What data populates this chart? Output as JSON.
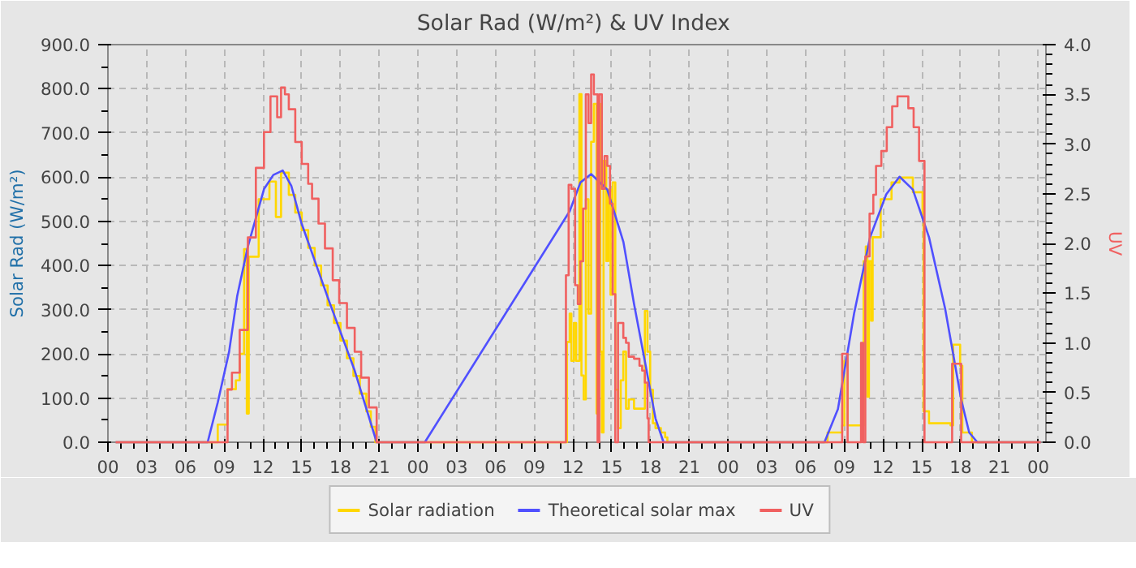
{
  "chart_data": {
    "type": "step",
    "title": "Solar Rad (W/m²) &  UV Index",
    "ylabel": "Solar Rad (W/m²)",
    "y2label": "UV",
    "xlim": [
      0,
      72.6
    ],
    "xticks": [
      {
        "value": 0,
        "label": "00"
      },
      {
        "value": 3,
        "label": "03"
      },
      {
        "value": 6,
        "label": "06"
      },
      {
        "value": 9,
        "label": "09"
      },
      {
        "value": 12,
        "label": "12"
      },
      {
        "value": 15,
        "label": "15"
      },
      {
        "value": 18,
        "label": "18"
      },
      {
        "value": 21,
        "label": "21"
      },
      {
        "value": 24,
        "label": "00"
      },
      {
        "value": 27,
        "label": "03"
      },
      {
        "value": 30,
        "label": "06"
      },
      {
        "value": 33,
        "label": "09"
      },
      {
        "value": 36,
        "label": "12"
      },
      {
        "value": 39,
        "label": "15"
      },
      {
        "value": 42,
        "label": "18"
      },
      {
        "value": 45,
        "label": "21"
      },
      {
        "value": 48,
        "label": "00"
      },
      {
        "value": 51,
        "label": "03"
      },
      {
        "value": 54,
        "label": "06"
      },
      {
        "value": 57,
        "label": "09"
      },
      {
        "value": 60,
        "label": "12"
      },
      {
        "value": 63,
        "label": "15"
      },
      {
        "value": 66,
        "label": "18"
      },
      {
        "value": 69,
        "label": "21"
      },
      {
        "value": 72,
        "label": "00"
      }
    ],
    "ylim": [
      0,
      900
    ],
    "yticks": [
      {
        "value": 0,
        "label": "0.0"
      },
      {
        "value": 100,
        "label": "100.0"
      },
      {
        "value": 200,
        "label": "200.0"
      },
      {
        "value": 300,
        "label": "300.0"
      },
      {
        "value": 400,
        "label": "400.0"
      },
      {
        "value": 500,
        "label": "500.0"
      },
      {
        "value": 600,
        "label": "600.0"
      },
      {
        "value": 700,
        "label": "700.0"
      },
      {
        "value": 800,
        "label": "800.0"
      },
      {
        "value": 900,
        "label": "900.0"
      }
    ],
    "y2lim": [
      0,
      4
    ],
    "y2ticks": [
      {
        "value": 0,
        "label": "0.0"
      },
      {
        "value": 0.5,
        "label": "0.5"
      },
      {
        "value": 1,
        "label": "1.0"
      },
      {
        "value": 1.5,
        "label": "1.5"
      },
      {
        "value": 2,
        "label": "2.0"
      },
      {
        "value": 2.5,
        "label": "2.5"
      },
      {
        "value": 3,
        "label": "3.0"
      },
      {
        "value": 3.5,
        "label": "3.5"
      },
      {
        "value": 4,
        "label": "4.0"
      }
    ],
    "grid": true,
    "legend": "bottom",
    "marker": "none",
    "line_style": "solid",
    "series": [
      {
        "name": "Solar radiation",
        "color": "#ffd700",
        "x": [
          0.6,
          7.8,
          8.5,
          9.25,
          9.9,
          10.2,
          10.54,
          10.75,
          10.9,
          11.67,
          12.5,
          13.0,
          13.4,
          14.0,
          14.5,
          15.0,
          15.5,
          16.0,
          16.5,
          17.0,
          17.5,
          18.0,
          18.5,
          19.0,
          19.5,
          20.0,
          20.35,
          20.7,
          35.53,
          35.74,
          35.87,
          36.07,
          36.24,
          36.49,
          36.65,
          36.82,
          36.99,
          37.2,
          37.4,
          37.61,
          37.82,
          37.94,
          38.11,
          38.23,
          38.36,
          38.57,
          38.73,
          38.9,
          39.07,
          39.27,
          39.48,
          39.69,
          39.89,
          40.1,
          40.31,
          40.72,
          41.14,
          41.56,
          41.76,
          41.97,
          42.18,
          42.38,
          42.8,
          43.13,
          43.3,
          55.4,
          55.7,
          56.83,
          57.0,
          57.25,
          58.37,
          58.49,
          58.66,
          58.78,
          58.9,
          59.07,
          59.19,
          59.81,
          60.65,
          61.27,
          62.3,
          63.05,
          63.13,
          63.55,
          65.22,
          65.42,
          65.96,
          66.13,
          66.87,
          72.2
        ],
        "values": [
          0,
          0,
          40,
          120,
          140,
          200,
          437,
          65,
          420,
          550,
          590,
          510,
          610,
          560,
          520,
          480,
          440,
          400,
          355,
          310,
          270,
          230,
          190,
          150,
          110,
          70,
          35,
          0,
          227,
          291,
          184,
          270,
          184,
          788,
          151,
          97,
          550,
          291,
          680,
          766,
          65,
          766,
          205,
          22,
          637,
          410,
          572,
          334,
          588,
          119,
          32,
          140,
          205,
          76,
          97,
          76,
          76,
          297,
          205,
          119,
          43,
          32,
          22,
          11,
          0,
          0,
          22,
          38,
          184,
          38,
          38,
          410,
          443,
          103,
          410,
          275,
          464,
          550,
          588,
          599,
          566,
          507,
          70,
          43,
          38,
          221,
          173,
          22,
          0,
          0
        ]
      },
      {
        "name": "Theoretical solar max",
        "color": "#5050ff",
        "type": "line",
        "x": [
          0.6,
          7.72,
          8.5,
          9.38,
          10.0,
          10.83,
          12.08,
          12.8,
          13.53,
          14.2,
          14.98,
          17.06,
          19.1,
          20.8,
          24.53,
          35.74,
          36.57,
          37.4,
          38.65,
          39.9,
          40.72,
          41.56,
          42.38,
          43.0,
          55.46,
          56.5,
          57.75,
          58.99,
          60.24,
          61.27,
          62.3,
          63.55,
          64.8,
          66.04,
          66.66,
          67.29,
          72.2
        ],
        "values": [
          0,
          0,
          90,
          205,
          330,
          443,
          573,
          605,
          615,
          580,
          496,
          324,
          162,
          0,
          0,
          523,
          588,
          607,
          572,
          453,
          313,
          183,
          54,
          0,
          0,
          75,
          291,
          464,
          561,
          601,
          572,
          464,
          302,
          97,
          22,
          0,
          0
        ]
      },
      {
        "name": "UV",
        "color": "#f06060",
        "axis": "y2",
        "x": [
          0.6,
          9.26,
          9.6,
          10.2,
          10.83,
          11.45,
          12.08,
          12.58,
          13.1,
          13.4,
          13.7,
          14.0,
          14.5,
          15.0,
          15.5,
          15.8,
          16.3,
          16.8,
          17.4,
          17.9,
          18.5,
          19.1,
          19.6,
          20.2,
          20.8,
          35.45,
          35.66,
          35.87,
          36.16,
          36.37,
          36.57,
          36.78,
          36.99,
          37.2,
          37.4,
          37.61,
          37.9,
          38.03,
          38.23,
          38.44,
          38.65,
          38.86,
          39.07,
          39.27,
          39.48,
          39.89,
          40.1,
          40.31,
          40.72,
          41.14,
          41.35,
          41.56,
          41.76,
          41.85,
          56.83,
          57.25,
          58.29,
          58.45,
          58.62,
          58.95,
          59.24,
          59.45,
          59.86,
          60.28,
          60.7,
          61.11,
          61.53,
          61.95,
          62.36,
          62.78,
          63.2,
          65.34,
          66.04,
          72.2
        ],
        "values": [
          0,
          0.53,
          0.7,
          1.13,
          2.06,
          2.76,
          3.12,
          3.48,
          3.27,
          3.57,
          3.5,
          3.35,
          3.02,
          2.8,
          2.6,
          2.45,
          2.2,
          1.95,
          1.63,
          1.4,
          1.15,
          0.91,
          0.65,
          0.35,
          0,
          1.68,
          2.59,
          2.55,
          1.58,
          1.39,
          1.82,
          2.35,
          3.5,
          3.21,
          3.7,
          3.5,
          0,
          3.5,
          2.55,
          2.88,
          2.78,
          2.4,
          1.49,
          0,
          1.2,
          1.05,
          1.0,
          0.86,
          0.84,
          0.77,
          0.72,
          0.6,
          0.24,
          0,
          0.89,
          0,
          1.0,
          0,
          1.87,
          2.3,
          2.49,
          2.78,
          2.93,
          3.17,
          3.38,
          3.48,
          3.48,
          3.36,
          3.17,
          2.83,
          0,
          0.79,
          0,
          0
        ]
      }
    ]
  }
}
